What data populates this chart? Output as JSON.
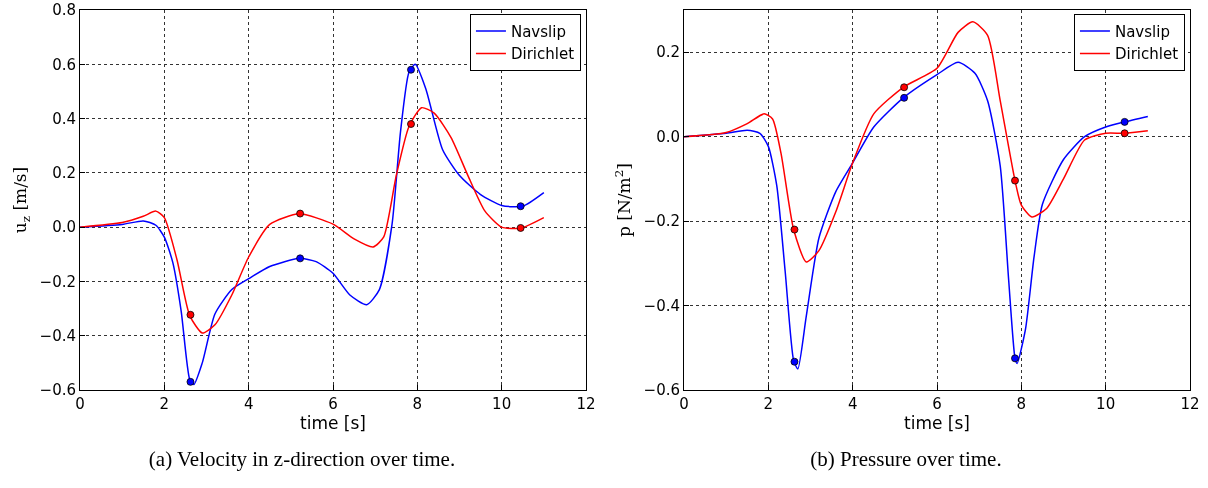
{
  "chart_data": [
    {
      "type": "line",
      "xlabel": "time [s]",
      "ylabel": "u$_{z}$ [m/s]",
      "annotations": [
        "(a) Velocity in z-direction over time."
      ],
      "xlim": [
        0,
        12
      ],
      "xticks": [
        0,
        2,
        4,
        6,
        8,
        10,
        12
      ],
      "ylim": [
        -0.6,
        0.8
      ],
      "yticks": [
        {
          "value": -0.6,
          "label": "−0.6"
        },
        {
          "value": -0.4,
          "label": "−0.4"
        },
        {
          "value": -0.2,
          "label": "−0.2"
        },
        {
          "value": 0,
          "label": "0.0"
        },
        {
          "value": 0.2,
          "label": "0.2"
        },
        {
          "value": 0.4,
          "label": "0.4"
        },
        {
          "value": 0.6,
          "label": "0.6"
        },
        {
          "value": 0.8,
          "label": "0.8"
        }
      ],
      "grid": true,
      "legend": "top right",
      "line_style": "solid",
      "series": [
        {
          "name": "Navslip",
          "color": "#0000ff",
          "type": "line",
          "marker": "none",
          "x": [
            0,
            1,
            1.5,
            1.8,
            2,
            2.2,
            2.4,
            2.6,
            2.7,
            2.9,
            3.2,
            3.6,
            4,
            4.5,
            5.2,
            5.6,
            6,
            6.4,
            6.8,
            7.1,
            7.4,
            7.6,
            7.8,
            7.95,
            8.2,
            8.6,
            9,
            9.5,
            10,
            10.5,
            11
          ],
          "values": [
            0,
            0.01,
            0.023,
            0.007,
            -0.037,
            -0.13,
            -0.31,
            -0.56,
            -0.58,
            -0.5,
            -0.32,
            -0.23,
            -0.19,
            -0.145,
            -0.115,
            -0.127,
            -0.17,
            -0.25,
            -0.286,
            -0.23,
            0.01,
            0.35,
            0.57,
            0.6,
            0.51,
            0.285,
            0.19,
            0.12,
            0.08,
            0.077,
            0.127
          ]
        },
        {
          "name": "Dirichlet",
          "color": "#ff0000",
          "type": "line",
          "marker": "none",
          "x": [
            0,
            1,
            1.5,
            1.8,
            2,
            2.3,
            2.6,
            2.9,
            3.2,
            3.6,
            4,
            4.5,
            5.2,
            6,
            6.5,
            6.95,
            7.2,
            7.5,
            7.8,
            8.1,
            8.4,
            8.8,
            9.2,
            9.6,
            10,
            10.45,
            11
          ],
          "values": [
            0,
            0.017,
            0.04,
            0.059,
            0.035,
            -0.12,
            -0.325,
            -0.39,
            -0.36,
            -0.25,
            -0.11,
            0.01,
            0.049,
            0.011,
            -0.043,
            -0.073,
            -0.037,
            0.19,
            0.37,
            0.44,
            0.42,
            0.33,
            0.19,
            0.06,
            0,
            -0.004,
            0.035
          ]
        },
        {
          "color": "#0000ff",
          "type": "scatter",
          "marker": "circle",
          "x": [
            2.62,
            5.22,
            7.85,
            10.45
          ],
          "values": [
            -0.57,
            -0.115,
            0.58,
            0.077
          ]
        },
        {
          "color": "#ff0000",
          "type": "scatter",
          "marker": "circle",
          "x": [
            2.62,
            5.22,
            7.85,
            10.45
          ],
          "values": [
            -0.323,
            0.05,
            0.38,
            -0.003
          ]
        }
      ]
    },
    {
      "type": "line",
      "xlabel": "time [s]",
      "ylabel": "p [N/m$^{2}$]",
      "annotations": [
        "(b) Pressure over time."
      ],
      "xlim": [
        0,
        12
      ],
      "xticks": [
        0,
        2,
        4,
        6,
        8,
        10,
        12
      ],
      "ylim": [
        -0.6,
        0.3
      ],
      "yticks": [
        {
          "value": -0.6,
          "label": "−0.6"
        },
        {
          "value": -0.4,
          "label": "−0.4"
        },
        {
          "value": -0.2,
          "label": "−0.2"
        },
        {
          "value": 0,
          "label": "0.0"
        },
        {
          "value": 0.2,
          "label": "0.2"
        }
      ],
      "grid": true,
      "legend": "top right",
      "line_style": "solid",
      "series": [
        {
          "name": "Navslip",
          "color": "#0000ff",
          "type": "line",
          "marker": "none",
          "x": [
            0,
            1,
            1.5,
            1.8,
            2,
            2.2,
            2.4,
            2.6,
            2.7,
            2.9,
            3.2,
            3.6,
            4,
            4.5,
            5.2,
            6,
            6.5,
            6.9,
            7.2,
            7.5,
            7.7,
            7.85,
            7.9,
            8.1,
            8.3,
            8.5,
            9,
            9.5,
            10,
            10.45,
            11
          ],
          "values": [
            0,
            0.008,
            0.015,
            0.008,
            -0.023,
            -0.116,
            -0.32,
            -0.53,
            -0.55,
            -0.425,
            -0.24,
            -0.13,
            -0.062,
            0.023,
            0.092,
            0.147,
            0.176,
            0.15,
            0.085,
            -0.07,
            -0.34,
            -0.525,
            -0.537,
            -0.455,
            -0.286,
            -0.16,
            -0.054,
            0,
            0.023,
            0.035,
            0.048
          ]
        },
        {
          "name": "Dirichlet",
          "color": "#ff0000",
          "type": "line",
          "marker": "none",
          "x": [
            0,
            1,
            1.5,
            1.9,
            2.1,
            2.3,
            2.6,
            2.9,
            3.2,
            3.6,
            4,
            4.5,
            5.2,
            6,
            6.5,
            6.85,
            7.2,
            7.5,
            7.85,
            8,
            8.25,
            8.6,
            9,
            9.5,
            10,
            10.45,
            11
          ],
          "values": [
            0,
            0.01,
            0.031,
            0.054,
            0.042,
            -0.039,
            -0.22,
            -0.297,
            -0.27,
            -0.178,
            -0.062,
            0.054,
            0.117,
            0.162,
            0.247,
            0.272,
            0.24,
            0.085,
            -0.104,
            -0.162,
            -0.19,
            -0.17,
            -0.1,
            -0.008,
            0.008,
            0.008,
            0.014
          ]
        },
        {
          "color": "#0000ff",
          "type": "scatter",
          "marker": "circle",
          "x": [
            2.62,
            5.22,
            7.85,
            10.45
          ],
          "values": [
            -0.533,
            0.092,
            -0.525,
            0.035
          ]
        },
        {
          "color": "#ff0000",
          "type": "scatter",
          "marker": "circle",
          "x": [
            2.62,
            5.22,
            7.85,
            10.45
          ],
          "values": [
            -0.22,
            0.117,
            -0.104,
            0.008
          ]
        }
      ]
    }
  ]
}
